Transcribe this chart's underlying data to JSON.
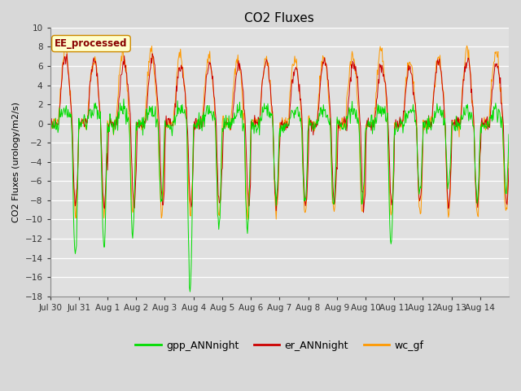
{
  "title": "CO2 Fluxes",
  "ylabel": "CO2 Fluxes (urology/m2/s)",
  "ylim": [
    -18,
    10
  ],
  "yticks": [
    -18,
    -16,
    -14,
    -12,
    -10,
    -8,
    -6,
    -4,
    -2,
    0,
    2,
    4,
    6,
    8,
    10
  ],
  "background_color": "#d8d8d8",
  "plot_bg_color": "#e0e0e0",
  "legend_entries": [
    "gpp_ANNnight",
    "er_ANNnight",
    "wc_gf"
  ],
  "legend_colors": [
    "#00dd00",
    "#cc0000",
    "#ff9900"
  ],
  "watermark_text": "EE_processed",
  "watermark_color": "#880000",
  "watermark_bg": "#ffffcc",
  "n_days": 16,
  "points_per_day": 48,
  "title_fontsize": 11,
  "label_fontsize": 8,
  "tick_fontsize": 7.5
}
